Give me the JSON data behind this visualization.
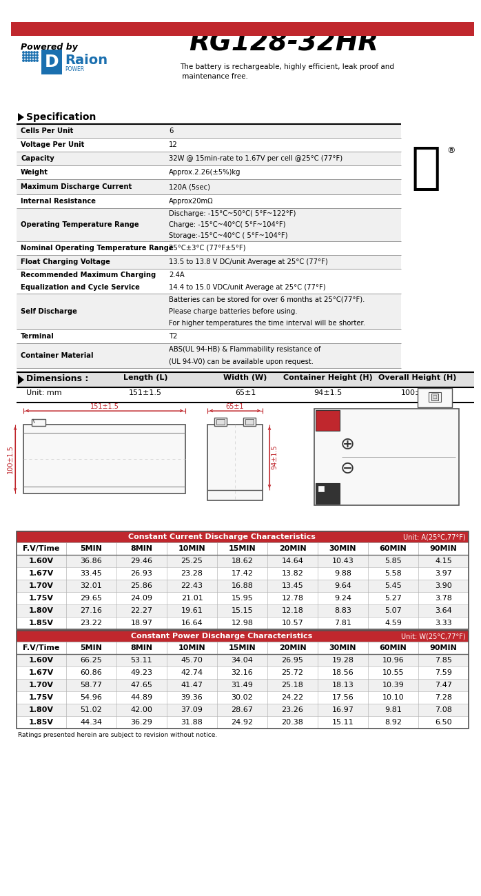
{
  "title": "RG128-32HR",
  "powered_by": "Powered by",
  "tagline": "The battery is rechargeable, highly efficient, leak proof and\n maintenance free.",
  "spec_header": "Specification",
  "spec_rows": [
    [
      "Cells Per Unit",
      "6"
    ],
    [
      "Voltage Per Unit",
      "12"
    ],
    [
      "Capacity",
      "32W @ 15min-rate to 1.67V per cell @25°C (77°F)"
    ],
    [
      "Weight",
      "Approx.2.26(±5%)kg"
    ],
    [
      "Maximum Discharge Current",
      "120A (5sec)"
    ],
    [
      "Internal Resistance",
      "Approx20mΩ"
    ],
    [
      "Operating Temperature Range",
      "Discharge: -15°C~50°C( 5°F~122°F)\nCharge: -15°C~40°C( 5°F~104°F)\nStorage:-15°C~40°C ( 5°F~104°F)"
    ],
    [
      "Nominal Operating Temperature Range",
      "25°C±3°C (77°F±5°F)"
    ],
    [
      "Float Charging Voltage",
      "13.5 to 13.8 V DC/unit Average at 25°C (77°F)"
    ],
    [
      "Recommended Maximum Charging\nEqualization and Cycle Service",
      "2.4A\n14.4 to 15.0 VDC/unit Average at 25°C (77°F)"
    ],
    [
      "Self Discharge",
      "Batteries can be stored for over 6 months at 25°C(77°F).\nPlease charge batteries before using.\nFor higher temperatures the time interval will be shorter."
    ],
    [
      "Terminal",
      "T2"
    ],
    [
      "Container Material",
      "ABS(UL 94-HB) & Flammability resistance of\n(UL 94-V0) can be available upon request."
    ]
  ],
  "spec_row_heights": [
    20,
    20,
    20,
    20,
    22,
    20,
    48,
    20,
    20,
    36,
    52,
    20,
    36
  ],
  "dim_header": "Dimensions :",
  "dim_cols": [
    "Length (L)",
    "Width (W)",
    "Container Height (H)",
    "Overall Height (H)"
  ],
  "dim_unit": "Unit: mm",
  "dim_vals": [
    "151±1.5",
    "65±1",
    "94±1.5",
    "100±1.5"
  ],
  "cc_header": "Constant Current Discharge Characteristics",
  "cc_unit": "Unit: A(25°C,77°F)",
  "cc_cols": [
    "F.V/Time",
    "5MIN",
    "8MIN",
    "10MIN",
    "15MIN",
    "20MIN",
    "30MIN",
    "60MIN",
    "90MIN"
  ],
  "cc_rows": [
    [
      "1.60V",
      "36.86",
      "29.46",
      "25.25",
      "18.62",
      "14.64",
      "10.43",
      "5.85",
      "4.15"
    ],
    [
      "1.67V",
      "33.45",
      "26.93",
      "23.28",
      "17.42",
      "13.82",
      "9.88",
      "5.58",
      "3.97"
    ],
    [
      "1.70V",
      "32.01",
      "25.86",
      "22.43",
      "16.88",
      "13.45",
      "9.64",
      "5.45",
      "3.90"
    ],
    [
      "1.75V",
      "29.65",
      "24.09",
      "21.01",
      "15.95",
      "12.78",
      "9.24",
      "5.27",
      "3.78"
    ],
    [
      "1.80V",
      "27.16",
      "22.27",
      "19.61",
      "15.15",
      "12.18",
      "8.83",
      "5.07",
      "3.64"
    ],
    [
      "1.85V",
      "23.22",
      "18.97",
      "16.64",
      "12.98",
      "10.57",
      "7.81",
      "4.59",
      "3.33"
    ]
  ],
  "cp_header": "Constant Power Discharge Characteristics",
  "cp_unit": "Unit: W(25°C,77°F)",
  "cp_cols": [
    "F.V/Time",
    "5MIN",
    "8MIN",
    "10MIN",
    "15MIN",
    "20MIN",
    "30MIN",
    "60MIN",
    "90MIN"
  ],
  "cp_rows": [
    [
      "1.60V",
      "66.25",
      "53.11",
      "45.70",
      "34.04",
      "26.95",
      "19.28",
      "10.96",
      "7.85"
    ],
    [
      "1.67V",
      "60.86",
      "49.23",
      "42.74",
      "32.16",
      "25.72",
      "18.56",
      "10.55",
      "7.59"
    ],
    [
      "1.70V",
      "58.77",
      "47.65",
      "41.47",
      "31.49",
      "25.18",
      "18.13",
      "10.39",
      "7.47"
    ],
    [
      "1.75V",
      "54.96",
      "44.89",
      "39.36",
      "30.02",
      "24.22",
      "17.56",
      "10.10",
      "7.28"
    ],
    [
      "1.80V",
      "51.02",
      "42.00",
      "37.09",
      "28.67",
      "23.26",
      "16.97",
      "9.81",
      "7.08"
    ],
    [
      "1.85V",
      "44.34",
      "36.29",
      "31.88",
      "24.92",
      "20.38",
      "15.11",
      "8.92",
      "6.50"
    ]
  ],
  "footer": "Ratings presented herein are subject to revision without notice.",
  "red_color": "#c0272d",
  "table_alt_bg": "#f0f0f0",
  "dim_bg": "#e0e0e0",
  "spec_line_color": "#999999",
  "table_border_color": "#888888"
}
